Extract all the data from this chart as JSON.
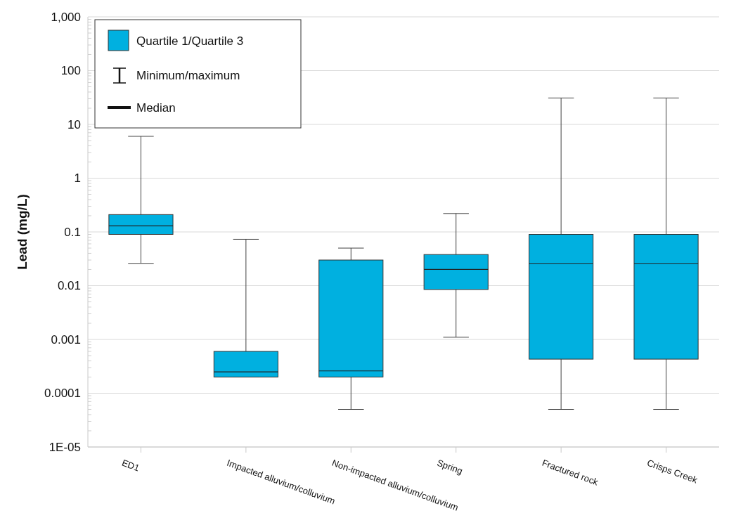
{
  "chart_data": {
    "type": "box",
    "ylabel": "Lead (mg/L)",
    "log": "y",
    "categories": [
      "ED1",
      "Impacted alluvium/colluvium",
      "Non-impacted alluvium/colluvium",
      "Spring",
      "Fractured rock",
      "Crisps Creek"
    ],
    "series": [
      {
        "name": "Quartile 1/Quartile 3",
        "color": "#00b0e0",
        "boxes": [
          {
            "low": 0.026,
            "q1": 0.09,
            "median": 0.13,
            "q3": 0.21,
            "high": 6
          },
          {
            "low": 0.0002,
            "q1": 0.0002,
            "median": 0.00025,
            "q3": 0.0006,
            "high": 0.073
          },
          {
            "low": 5e-05,
            "q1": 0.0002,
            "median": 0.00026,
            "q3": 0.03,
            "high": 0.05
          },
          {
            "low": 0.0011,
            "q1": 0.0085,
            "median": 0.02,
            "q3": 0.038,
            "high": 0.22
          },
          {
            "low": 5e-05,
            "q1": 0.00043,
            "median": 0.026,
            "q3": 0.09,
            "high": 31
          },
          {
            "low": 5e-05,
            "q1": 0.00043,
            "median": 0.026,
            "q3": 0.09,
            "high": 31
          }
        ]
      }
    ],
    "annotations": [
      "Minimum/maximum",
      "Median"
    ],
    "ylim": [
      1e-05,
      1000
    ],
    "yticks": [
      {
        "value": 1e-05,
        "label": "1E-05"
      },
      0.0001,
      0.001,
      0.01,
      0.1,
      1,
      10,
      100,
      {
        "value": 1000,
        "label": "1,000"
      }
    ],
    "grid": "y",
    "legend": "top left"
  }
}
